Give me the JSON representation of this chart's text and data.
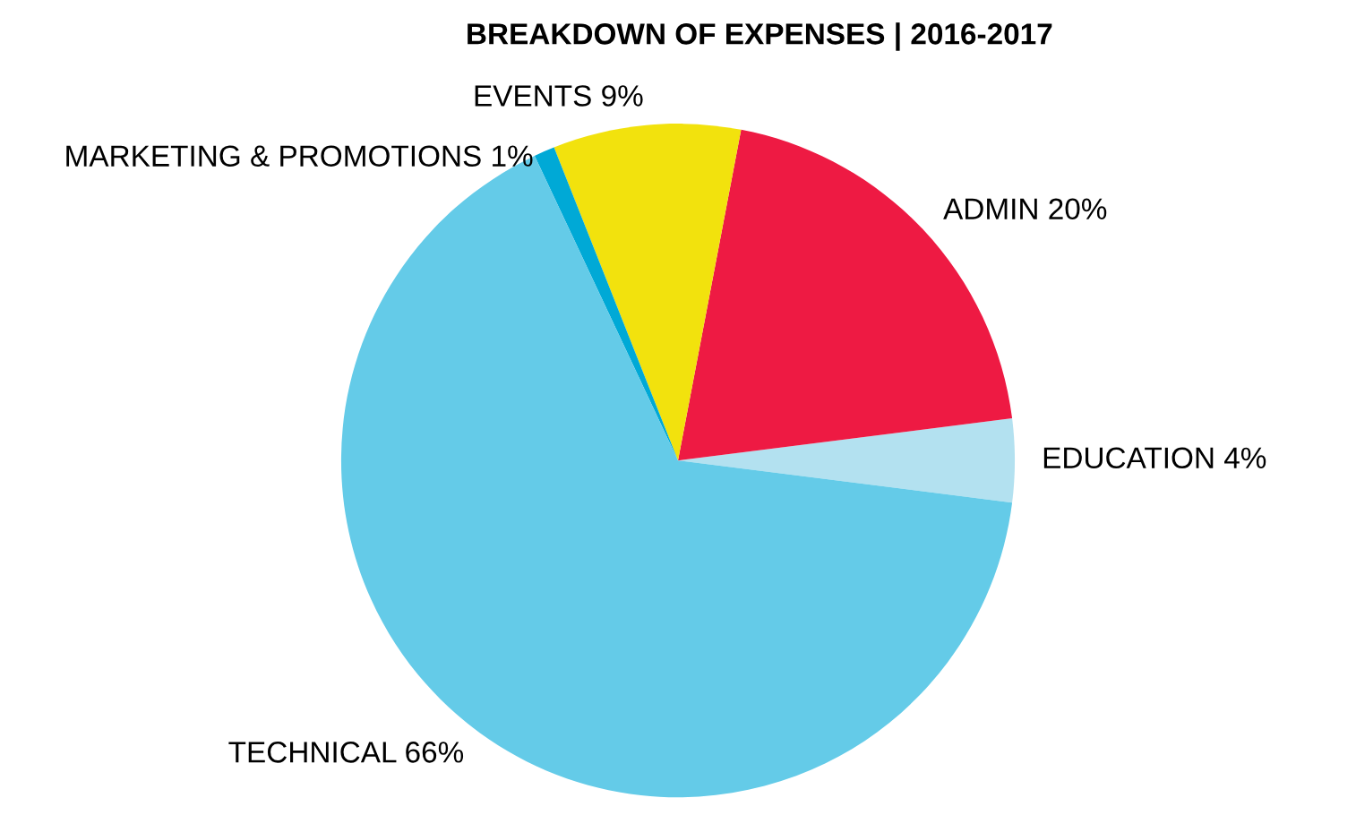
{
  "chart_data": {
    "type": "pie",
    "title": "BREAKDOWN OF EXPENSES | 2016-2017",
    "categories": [
      "EDUCATION 4%",
      "ADMIN 20%",
      "EVENTS 9%",
      "MARKETING & PROMOTIONS 1%",
      "TECHNICAL 66%"
    ],
    "values": [
      4,
      20,
      9,
      1,
      66
    ],
    "colors": [
      "#b3e1f0",
      "#ee1a43",
      "#f2e20d",
      "#00a9d6",
      "#64cbe8"
    ]
  }
}
